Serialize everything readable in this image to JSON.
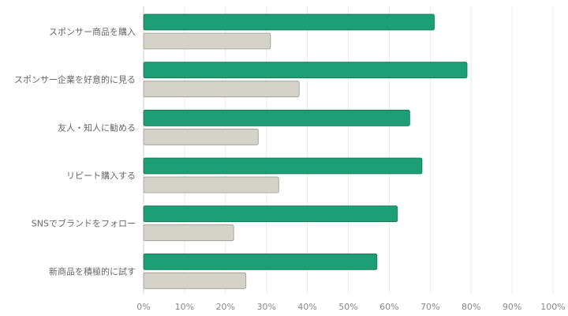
{
  "chart_data": {
    "type": "bar",
    "orientation": "horizontal",
    "categories": [
      "スポンサー商品を購入",
      "スポンサー企業を好意的に見る",
      "友人・知人に勧める",
      "リピート購入する",
      "SNSでブランドをフォロー",
      "新商品を積極的に試す"
    ],
    "series": [
      {
        "color": "#1e9e74",
        "values": [
          71,
          79,
          65,
          68,
          62,
          57
        ]
      },
      {
        "color": "#d5d2c9",
        "values": [
          31,
          38,
          28,
          33,
          22,
          25
        ]
      }
    ],
    "xlim": [
      0,
      100
    ],
    "xticks": [
      {
        "value": 0,
        "label": "0%"
      },
      {
        "value": 10,
        "label": "10%"
      },
      {
        "value": 20,
        "label": "20%"
      },
      {
        "value": 30,
        "label": "30%"
      },
      {
        "value": 40,
        "label": "40%"
      },
      {
        "value": 50,
        "label": "50%"
      },
      {
        "value": 60,
        "label": "60%"
      },
      {
        "value": 70,
        "label": "70%"
      },
      {
        "value": 80,
        "label": "80%"
      },
      {
        "value": 90,
        "label": "90%"
      },
      {
        "value": 100,
        "label": "100%"
      }
    ],
    "grid": true
  }
}
